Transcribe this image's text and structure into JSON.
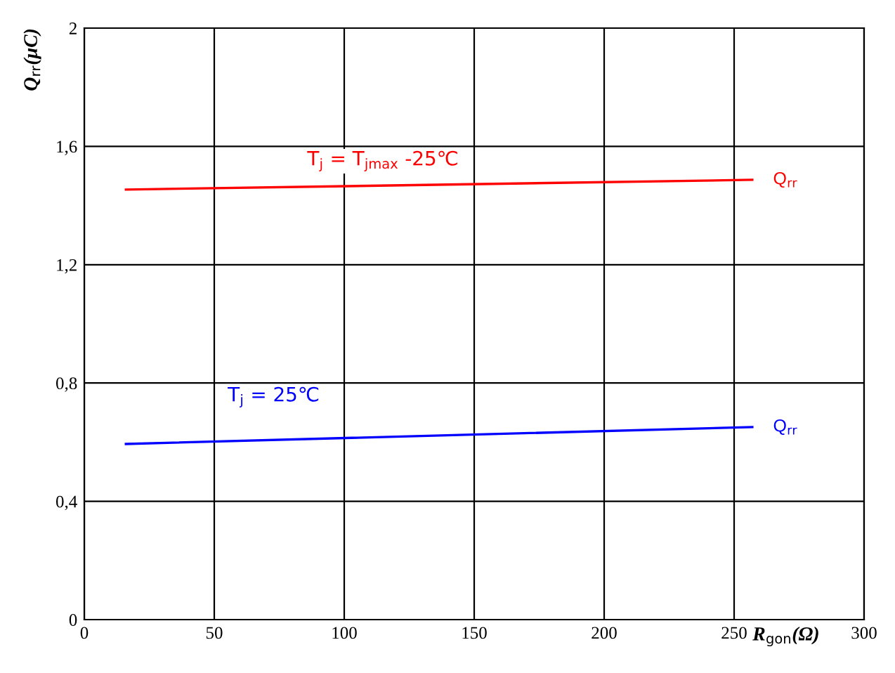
{
  "chart_data": {
    "type": "line",
    "xlabel": "R$_{gon}$(Ω)",
    "ylabel": "Q$_{rr}$(μC)",
    "xlim": [
      0,
      300
    ],
    "xticks": [
      0,
      50,
      100,
      150,
      200,
      250,
      300
    ],
    "ylim": [
      0,
      2
    ],
    "yticks": [
      0,
      {
        "value": 0.4,
        "label": "0,4"
      },
      {
        "value": 0.8,
        "label": "0,8"
      },
      {
        "value": 1.2,
        "label": "1,2"
      },
      {
        "value": 1.6,
        "label": "1,6"
      },
      2
    ],
    "grid": true,
    "legend": false,
    "marker": "none",
    "line_style": "solid",
    "x": [
      16,
      257
    ],
    "series": [
      {
        "name": "Q$_{rr}$",
        "color": "#ff0000",
        "values": [
          1.454,
          1.487
        ]
      },
      {
        "name": "Q$_{rr}$",
        "color": "#0000ff",
        "values": [
          0.594,
          0.651
        ]
      }
    ],
    "annotations": [
      "T$_{j}$ = T$_{jmax}$ -25℃",
      "T$_{j}$ = 25℃"
    ]
  }
}
